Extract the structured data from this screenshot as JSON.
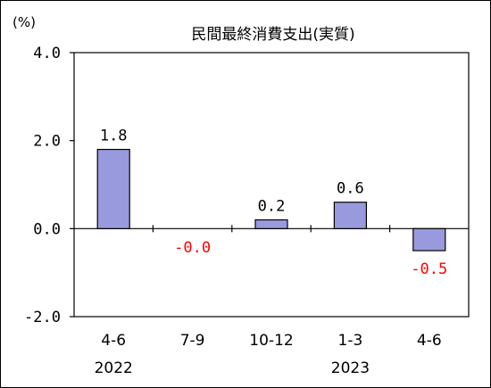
{
  "chart_data": {
    "type": "bar",
    "title": "民間最終消費支出(実質)",
    "unit_label": "(%)",
    "ylim": [
      -2.0,
      4.0
    ],
    "yticks": [
      "4.0",
      "2.0",
      "0.0",
      "-2.0"
    ],
    "grid": false,
    "categories": [
      "4-6",
      "7-9",
      "10-12",
      "1-3",
      "4-6"
    ],
    "year_labels": [
      "2022",
      "",
      "",
      "2023",
      ""
    ],
    "values": [
      1.8,
      -0.01,
      0.2,
      0.6,
      -0.5
    ],
    "value_labels": [
      "1.8",
      "-0.0",
      "0.2",
      "0.6",
      "-0.5"
    ],
    "colors": {
      "bar": "#9999dd",
      "positive_label": "#000000",
      "negative_label": "#ff0000"
    }
  }
}
